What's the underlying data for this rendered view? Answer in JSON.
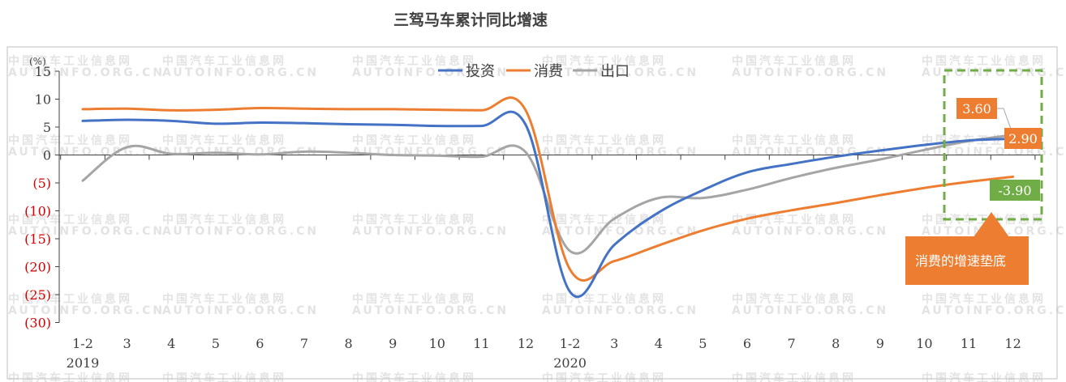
{
  "chart_data": {
    "type": "line",
    "title": "三驾马车累计同比增速",
    "unit_label": "(%)",
    "y_ticks": [
      {
        "value": 15,
        "label": "15"
      },
      {
        "value": 10,
        "label": "10"
      },
      {
        "value": 5,
        "label": "5"
      },
      {
        "value": 0,
        "label": "0"
      },
      {
        "value": -5,
        "label": "(5)"
      },
      {
        "value": -10,
        "label": "(10)"
      },
      {
        "value": -15,
        "label": "(15)"
      },
      {
        "value": -20,
        "label": "(20)"
      },
      {
        "value": -25,
        "label": "(25)"
      },
      {
        "value": -30,
        "label": "(30)"
      }
    ],
    "ylim": [
      -30,
      15
    ],
    "categories": [
      "1-2",
      "3",
      "4",
      "5",
      "6",
      "7",
      "8",
      "9",
      "10",
      "11",
      "12",
      "1-2",
      "3",
      "4",
      "5",
      "6",
      "7",
      "8",
      "9",
      "10",
      "11",
      "12"
    ],
    "year_labels": [
      {
        "index": 0,
        "label": "2019"
      },
      {
        "index": 11,
        "label": "2020"
      }
    ],
    "grid": false,
    "legend_position": "top",
    "series": [
      {
        "name": "投资",
        "color": "#4472c4",
        "values": [
          6.1,
          6.3,
          6.1,
          5.6,
          5.8,
          5.7,
          5.5,
          5.4,
          5.2,
          5.2,
          5.4,
          -24.5,
          -16.1,
          -10.3,
          -6.3,
          -3.1,
          -1.6,
          -0.3,
          0.8,
          1.8,
          2.6,
          2.9
        ]
      },
      {
        "name": "消费",
        "color": "#ed7d31",
        "values": [
          8.2,
          8.3,
          8.0,
          8.1,
          8.4,
          8.3,
          8.2,
          8.2,
          8.1,
          8.0,
          8.0,
          -20.5,
          -19.0,
          -16.2,
          -13.5,
          -11.4,
          -9.9,
          -8.6,
          -7.2,
          -5.9,
          -4.8,
          -3.9
        ]
      },
      {
        "name": "出口",
        "color": "#a5a5a5",
        "values": [
          -4.6,
          1.4,
          0.2,
          0.4,
          0.1,
          0.6,
          0.4,
          0.0,
          -0.1,
          -0.3,
          0.5,
          -17.2,
          -11.4,
          -7.7,
          -7.7,
          -6.2,
          -4.1,
          -2.3,
          -0.8,
          0.9,
          2.5,
          3.6
        ]
      }
    ],
    "labels": [
      {
        "series": "出口",
        "text": "3.60",
        "color": "#ed7d31"
      },
      {
        "series": "投资",
        "text": "2.90",
        "color": "#ed7d31"
      },
      {
        "series": "消费",
        "text": "-3.90",
        "color": "#70ad47"
      }
    ],
    "callout": {
      "text": "消费的增速垫底",
      "color": "#ed7d31"
    },
    "highlight_color": "#70ad47"
  },
  "watermark": {
    "line1": "中国汽车工业信息网",
    "line2": "AUTOINFO.ORG.CN"
  }
}
